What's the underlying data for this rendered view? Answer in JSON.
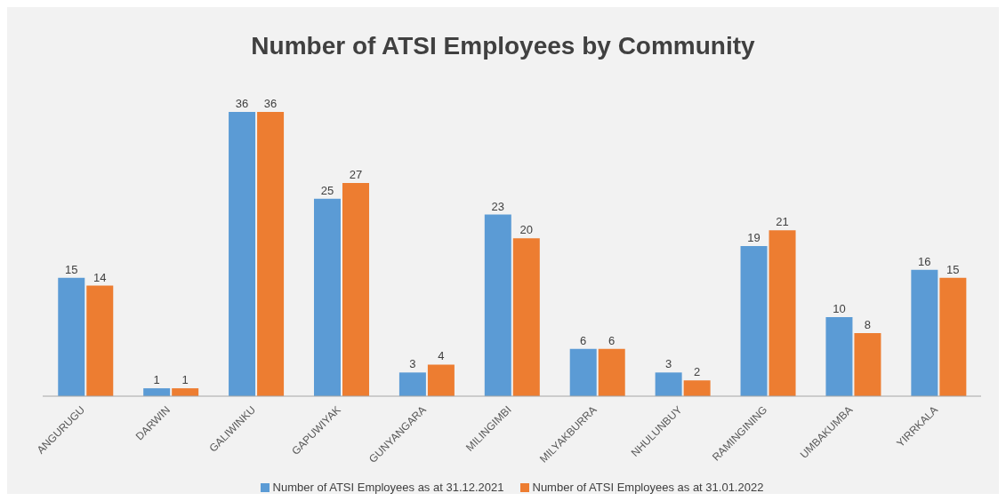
{
  "chart_data": {
    "type": "bar",
    "title": "Number of ATSI Employees by Community",
    "categories": [
      "ANGURUGU",
      "DARWIN",
      "GALIWINKU",
      "GAPUWIYAK",
      "GUNYANGARA",
      "MILINGIMBI",
      "MILYAKBURRA",
      "NHULUNBUY",
      "RAMINGINING",
      "UMBAKUMBA",
      "YIRRKALA"
    ],
    "series": [
      {
        "name": "Number of ATSI Employees as at 31.12.2021",
        "color": "#5b9bd5",
        "values": [
          15,
          1,
          36,
          25,
          3,
          23,
          6,
          3,
          19,
          10,
          16
        ]
      },
      {
        "name": "Number of ATSI Employees as at 31.01.2022",
        "color": "#ed7d31",
        "values": [
          14,
          1,
          36,
          27,
          4,
          20,
          6,
          2,
          21,
          8,
          15
        ]
      }
    ],
    "data_labels": true,
    "legend": "bottom"
  }
}
